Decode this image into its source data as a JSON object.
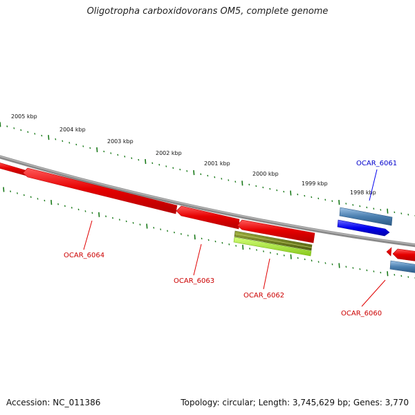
{
  "title": "Oligotropha carboxidovorans OM5, complete genome",
  "footer": {
    "accession": "Accession: NC_011386",
    "summary": "Topology: circular; Length: 3,745,629 bp; Genes: 3,770"
  },
  "colors": {
    "backbone": "#808080",
    "tick": "#1a7a1a",
    "red_gene": "#e60000",
    "red_label": "#cc0000",
    "blue_gene": "#0000ee",
    "blue_label": "#0000cc",
    "steel_gene": "#4a7fb0",
    "olive_gene": "#6b7f1a",
    "lime_gene": "#a8e030"
  },
  "scale": {
    "unit": "kbp",
    "labels": [
      "2005 kbp",
      "2004 kbp",
      "2003 kbp",
      "2002 kbp",
      "2001 kbp",
      "2000 kbp",
      "1999 kbp",
      "1998 kbp"
    ]
  },
  "genes": [
    {
      "id": "OCAR_6064",
      "color": "red"
    },
    {
      "id": "OCAR_6063",
      "color": "red"
    },
    {
      "id": "OCAR_6062",
      "color": "red"
    },
    {
      "id": "OCAR_6061",
      "color": "blue"
    },
    {
      "id": "OCAR_6060",
      "color": "red"
    }
  ]
}
